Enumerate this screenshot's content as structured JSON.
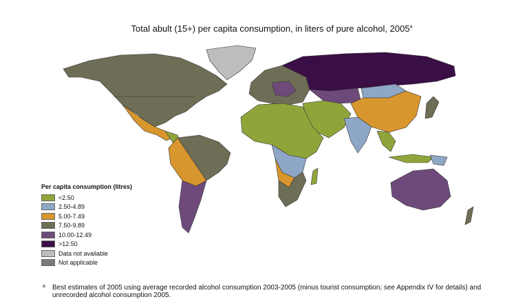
{
  "header": {
    "title": "Total abult (15+) per capita consumption, in liters of pure alcohol, 2005",
    "title_note": "a"
  },
  "legend": {
    "title": "Per capita consumption (litres)",
    "items": [
      {
        "label": "<2.50",
        "color": "#8fa53a"
      },
      {
        "label": "2.50-4.89",
        "color": "#8ea7c6"
      },
      {
        "label": "5.00-7.49",
        "color": "#d8962e"
      },
      {
        "label": "7.50-9.89",
        "color": "#6e6d55"
      },
      {
        "label": "10.00-12.49",
        "color": "#6e4a7b"
      },
      {
        "label": ">12.50",
        "color": "#3a0f45"
      },
      {
        "label": "Data not available",
        "color": "#bdbdbd"
      },
      {
        "label": "Not applicable",
        "color": "#7b7b7b"
      }
    ]
  },
  "footnote": {
    "marker": "a",
    "text": "Best estimates of 2005 using average recorded alcohol consumption 2003-2005 (minus tourist consumption; see Appendix IV for details) and unrecorded alcohol consumption 2005."
  }
}
